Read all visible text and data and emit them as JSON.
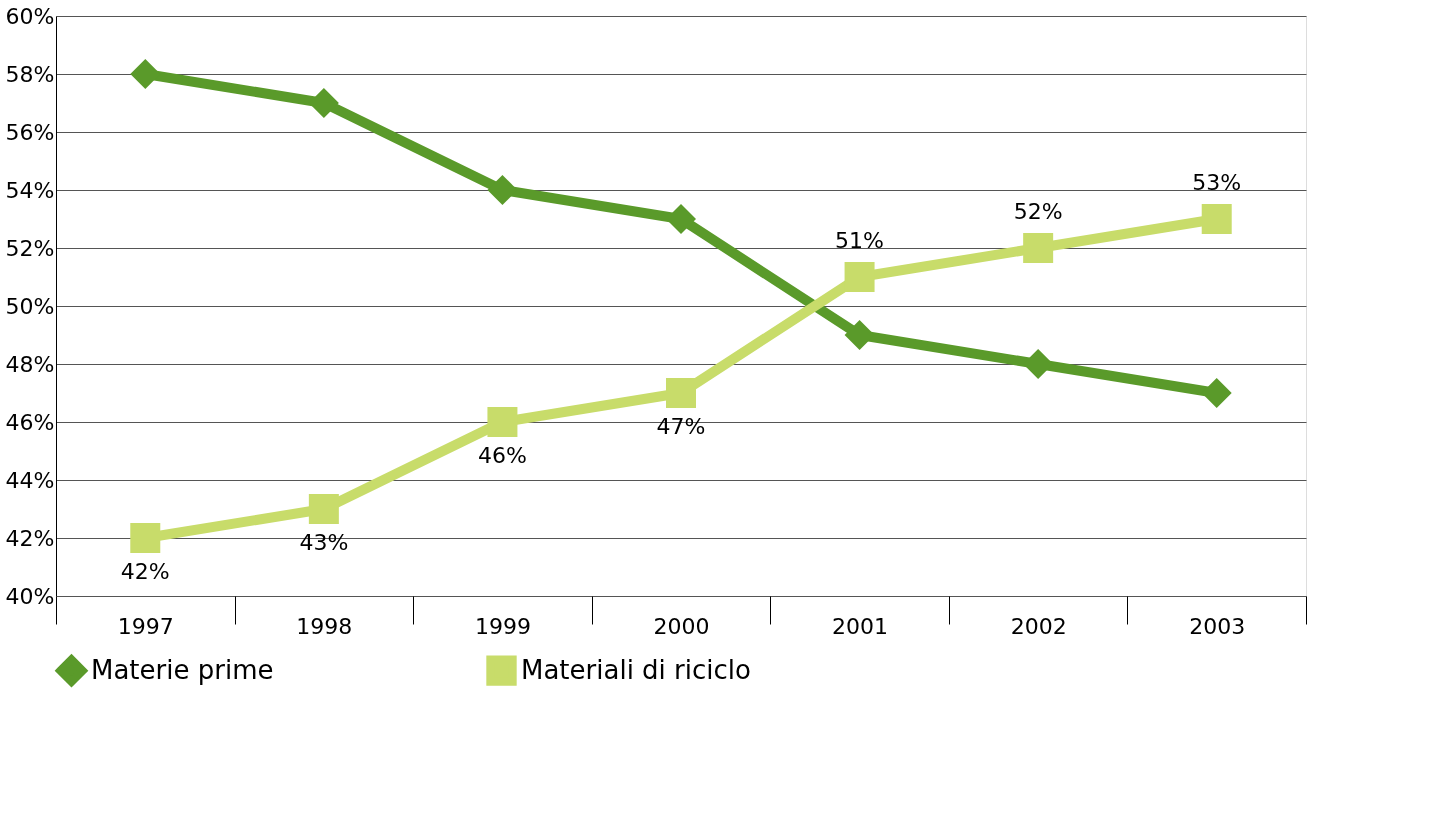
{
  "chart_data": {
    "type": "line",
    "categories": [
      "1997",
      "1998",
      "1999",
      "2000",
      "2001",
      "2002",
      "2003"
    ],
    "series": [
      {
        "name": "Materie prime",
        "color": "#5a9a2a",
        "marker": "diamond",
        "values": [
          58,
          57,
          54,
          53,
          49,
          48,
          47
        ]
      },
      {
        "name": "Materiali di riciclo",
        "color": "#c8dc6a",
        "marker": "square",
        "values": [
          42,
          43,
          46,
          47,
          51,
          52,
          53
        ],
        "value_labels": [
          "42%",
          "43%",
          "46%",
          "47%",
          "51%",
          "52%",
          "53%"
        ]
      }
    ],
    "ylim": [
      40,
      60
    ],
    "yticks": [
      {
        "value": 40,
        "label": "40%"
      },
      {
        "value": 42,
        "label": "42%"
      },
      {
        "value": 44,
        "label": "44%"
      },
      {
        "value": 46,
        "label": "46%"
      },
      {
        "value": 48,
        "label": "48%"
      },
      {
        "value": 50,
        "label": "50%"
      },
      {
        "value": 52,
        "label": "52%"
      },
      {
        "value": 54,
        "label": "54%"
      },
      {
        "value": 56,
        "label": "56%"
      },
      {
        "value": 58,
        "label": "58%"
      },
      {
        "value": 60,
        "label": "60%"
      }
    ],
    "grid": "y",
    "legend": "bottom",
    "line_style": "solid"
  }
}
